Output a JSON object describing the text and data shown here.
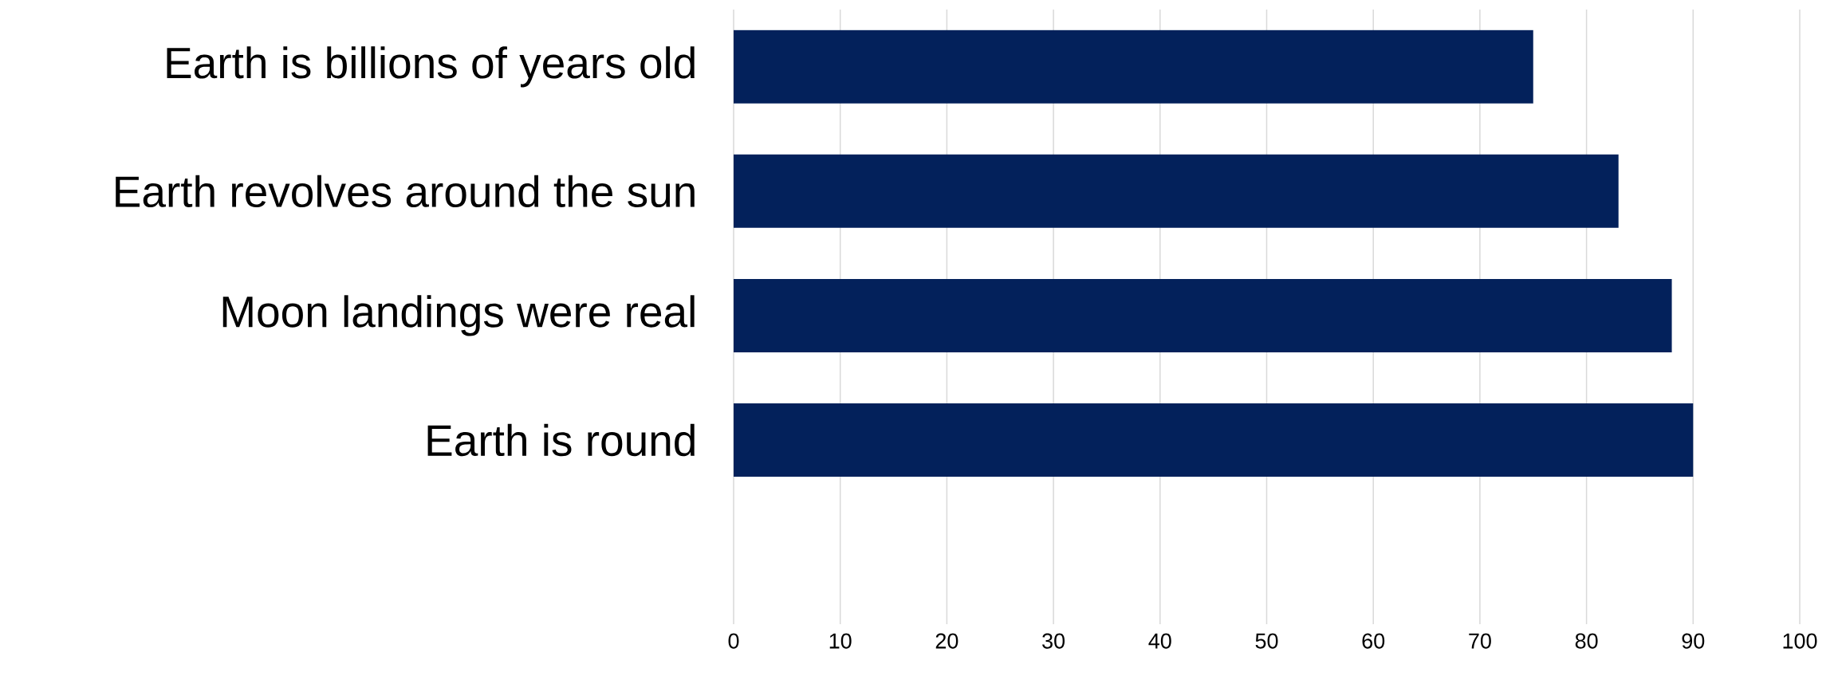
{
  "chart_data": {
    "type": "bar",
    "orientation": "horizontal",
    "categories": [
      "Earth is billions of years old",
      "Earth revolves around the sun",
      "Moon landings were real",
      "Earth is round"
    ],
    "values": [
      75,
      83,
      88,
      90
    ],
    "color": "#03215b",
    "xlim": [
      0,
      100
    ],
    "xticks": [
      0,
      10,
      20,
      30,
      40,
      50,
      60,
      70,
      80,
      90,
      100
    ],
    "grid": "x"
  }
}
